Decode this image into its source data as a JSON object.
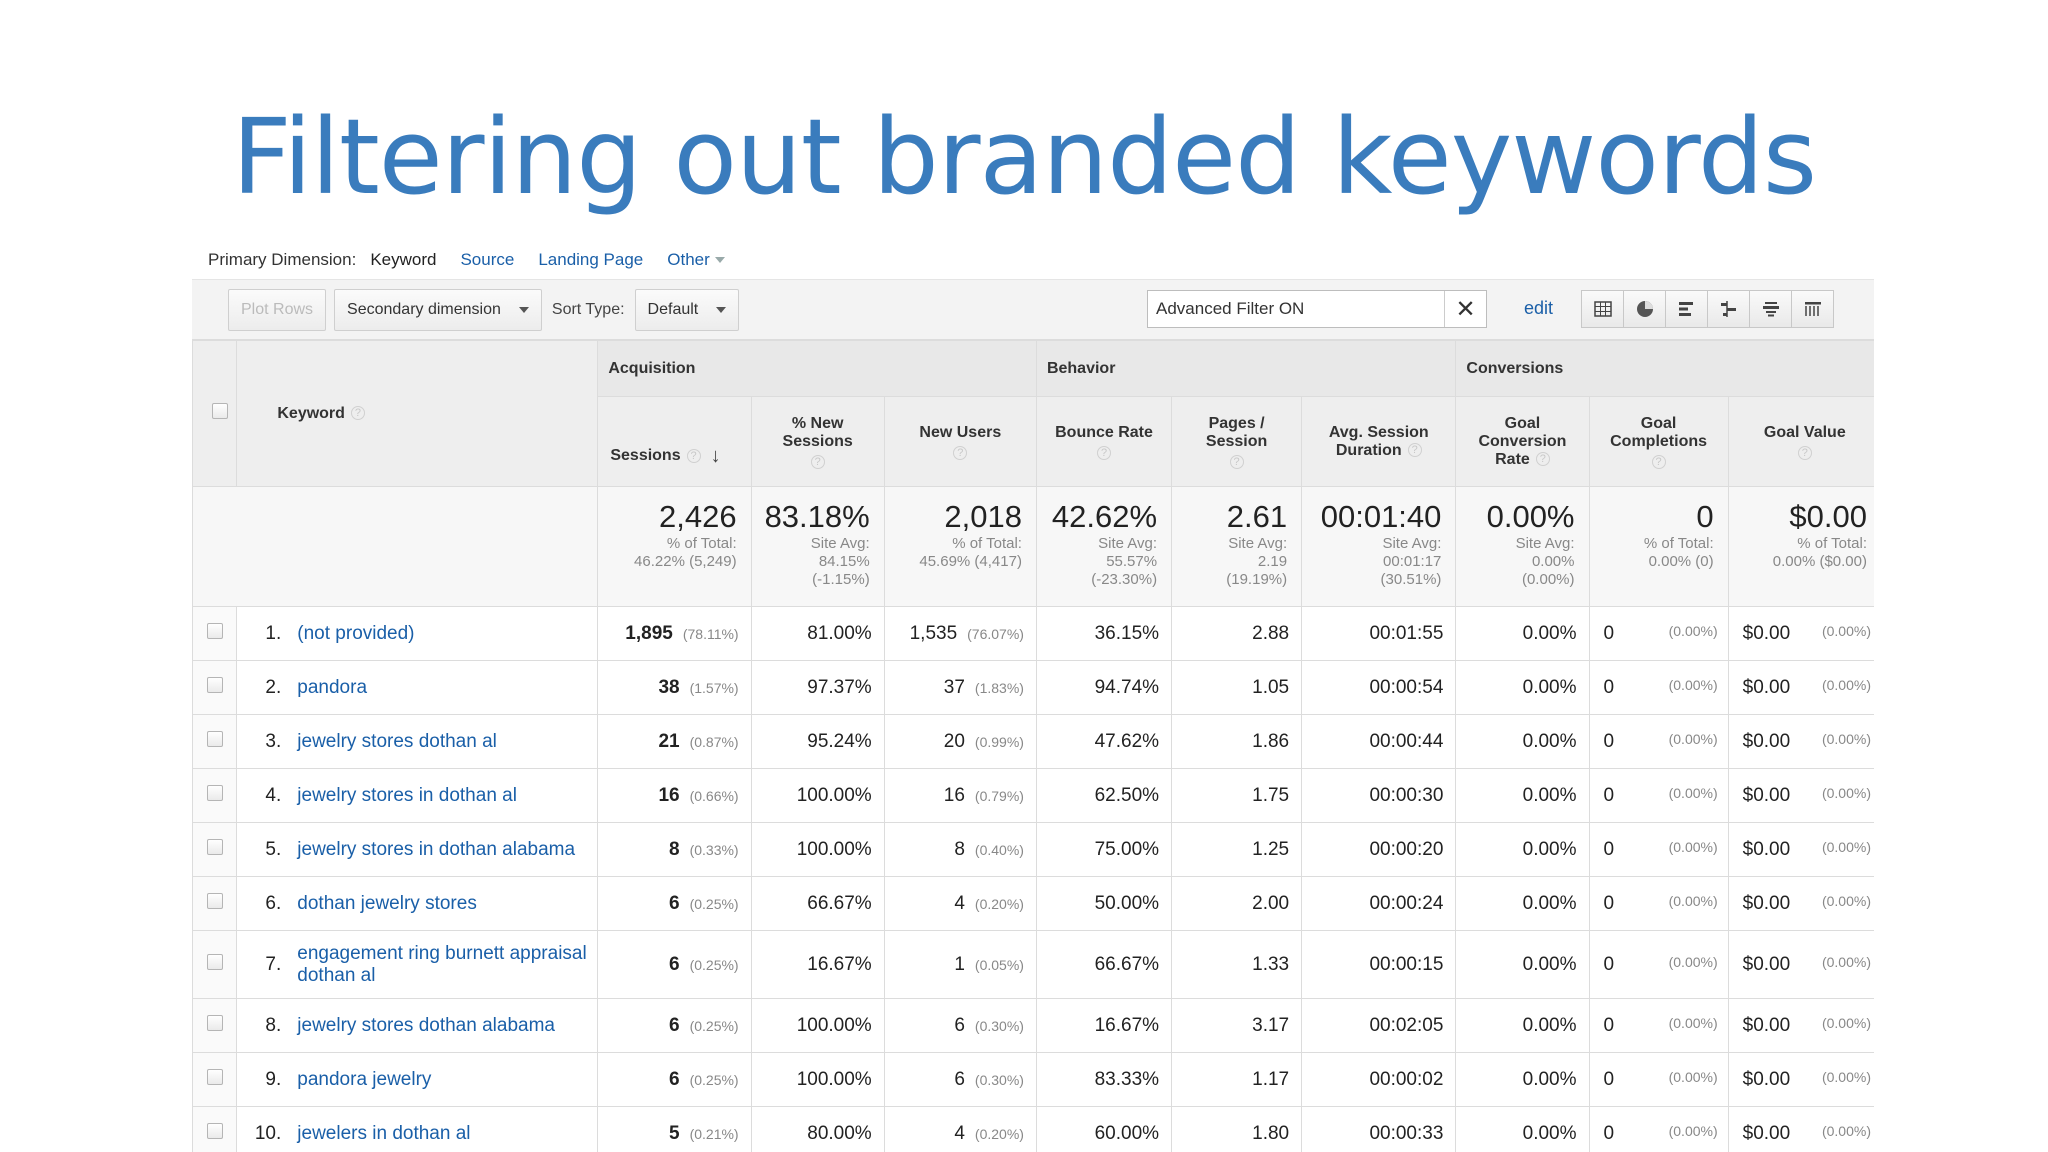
{
  "title": "Filtering out branded keywords",
  "primary_dimension": {
    "label": "Primary Dimension:",
    "active": "Keyword",
    "links": [
      "Source",
      "Landing Page",
      "Other"
    ]
  },
  "toolbar": {
    "plot_rows": "Plot Rows",
    "secondary_dimension": "Secondary dimension",
    "sort_type_label": "Sort Type:",
    "sort_type_value": "Default",
    "filter_text": "Advanced Filter ON",
    "edit": "edit",
    "view_icons": [
      "table-view-icon",
      "pie-view-icon",
      "performance-view-icon",
      "comparison-view-icon",
      "term-cloud-view-icon",
      "pivot-view-icon"
    ]
  },
  "groups": [
    "Acquisition",
    "Behavior",
    "Conversions"
  ],
  "columns": {
    "keyword": "Keyword",
    "sessions": "Sessions",
    "new_sessions": "% New Sessions",
    "new_users": "New Users",
    "bounce_rate": "Bounce Rate",
    "pages_session": "Pages / Session",
    "avg_duration": "Avg. Session Duration",
    "goal_conv_rate": "Goal Conversion Rate",
    "goal_completions": "Goal Completions",
    "goal_value": "Goal Value"
  },
  "totals": {
    "sessions": {
      "big": "2,426",
      "sub": "% of Total:\n46.22% (5,249)"
    },
    "new_sessions": {
      "big": "83.18%",
      "sub": "Site Avg:\n84.15%\n(-1.15%)"
    },
    "new_users": {
      "big": "2,018",
      "sub": "% of Total:\n45.69% (4,417)"
    },
    "bounce_rate": {
      "big": "42.62%",
      "sub": "Site Avg:\n55.57%\n(-23.30%)"
    },
    "pages_session": {
      "big": "2.61",
      "sub": "Site Avg:\n2.19\n(19.19%)"
    },
    "avg_duration": {
      "big": "00:01:40",
      "sub": "Site Avg:\n00:01:17\n(30.51%)"
    },
    "goal_conv_rate": {
      "big": "0.00%",
      "sub": "Site Avg:\n0.00%\n(0.00%)"
    },
    "goal_completions": {
      "big": "0",
      "sub": "% of Total:\n0.00% (0)"
    },
    "goal_value": {
      "big": "$0.00",
      "sub": "% of Total:\n0.00% ($0.00)"
    }
  },
  "rows": [
    {
      "idx": "1.",
      "keyword": "(not provided)",
      "sessions": "1,895",
      "sessions_pct": "(78.11%)",
      "new_sessions": "81.00%",
      "new_users": "1,535",
      "new_users_pct": "(76.07%)",
      "bounce": "36.15%",
      "pages": "2.88",
      "duration": "00:01:55",
      "conv": "0.00%",
      "comp": "0",
      "comp_pct": "(0.00%)",
      "value": "$0.00",
      "value_pct": "(0.00%)"
    },
    {
      "idx": "2.",
      "keyword": "pandora",
      "sessions": "38",
      "sessions_pct": "(1.57%)",
      "new_sessions": "97.37%",
      "new_users": "37",
      "new_users_pct": "(1.83%)",
      "bounce": "94.74%",
      "pages": "1.05",
      "duration": "00:00:54",
      "conv": "0.00%",
      "comp": "0",
      "comp_pct": "(0.00%)",
      "value": "$0.00",
      "value_pct": "(0.00%)"
    },
    {
      "idx": "3.",
      "keyword": "jewelry stores dothan al",
      "sessions": "21",
      "sessions_pct": "(0.87%)",
      "new_sessions": "95.24%",
      "new_users": "20",
      "new_users_pct": "(0.99%)",
      "bounce": "47.62%",
      "pages": "1.86",
      "duration": "00:00:44",
      "conv": "0.00%",
      "comp": "0",
      "comp_pct": "(0.00%)",
      "value": "$0.00",
      "value_pct": "(0.00%)"
    },
    {
      "idx": "4.",
      "keyword": "jewelry stores in dothan al",
      "sessions": "16",
      "sessions_pct": "(0.66%)",
      "new_sessions": "100.00%",
      "new_users": "16",
      "new_users_pct": "(0.79%)",
      "bounce": "62.50%",
      "pages": "1.75",
      "duration": "00:00:30",
      "conv": "0.00%",
      "comp": "0",
      "comp_pct": "(0.00%)",
      "value": "$0.00",
      "value_pct": "(0.00%)"
    },
    {
      "idx": "5.",
      "keyword": "jewelry stores in dothan alabama",
      "sessions": "8",
      "sessions_pct": "(0.33%)",
      "new_sessions": "100.00%",
      "new_users": "8",
      "new_users_pct": "(0.40%)",
      "bounce": "75.00%",
      "pages": "1.25",
      "duration": "00:00:20",
      "conv": "0.00%",
      "comp": "0",
      "comp_pct": "(0.00%)",
      "value": "$0.00",
      "value_pct": "(0.00%)"
    },
    {
      "idx": "6.",
      "keyword": "dothan jewelry stores",
      "sessions": "6",
      "sessions_pct": "(0.25%)",
      "new_sessions": "66.67%",
      "new_users": "4",
      "new_users_pct": "(0.20%)",
      "bounce": "50.00%",
      "pages": "2.00",
      "duration": "00:00:24",
      "conv": "0.00%",
      "comp": "0",
      "comp_pct": "(0.00%)",
      "value": "$0.00",
      "value_pct": "(0.00%)"
    },
    {
      "idx": "7.",
      "keyword": "engagement ring burnett appraisal dothan al",
      "sessions": "6",
      "sessions_pct": "(0.25%)",
      "new_sessions": "16.67%",
      "new_users": "1",
      "new_users_pct": "(0.05%)",
      "bounce": "66.67%",
      "pages": "1.33",
      "duration": "00:00:15",
      "conv": "0.00%",
      "comp": "0",
      "comp_pct": "(0.00%)",
      "value": "$0.00",
      "value_pct": "(0.00%)"
    },
    {
      "idx": "8.",
      "keyword": "jewelry stores dothan alabama",
      "sessions": "6",
      "sessions_pct": "(0.25%)",
      "new_sessions": "100.00%",
      "new_users": "6",
      "new_users_pct": "(0.30%)",
      "bounce": "16.67%",
      "pages": "3.17",
      "duration": "00:02:05",
      "conv": "0.00%",
      "comp": "0",
      "comp_pct": "(0.00%)",
      "value": "$0.00",
      "value_pct": "(0.00%)"
    },
    {
      "idx": "9.",
      "keyword": "pandora jewelry",
      "sessions": "6",
      "sessions_pct": "(0.25%)",
      "new_sessions": "100.00%",
      "new_users": "6",
      "new_users_pct": "(0.30%)",
      "bounce": "83.33%",
      "pages": "1.17",
      "duration": "00:00:02",
      "conv": "0.00%",
      "comp": "0",
      "comp_pct": "(0.00%)",
      "value": "$0.00",
      "value_pct": "(0.00%)"
    },
    {
      "idx": "10.",
      "keyword": "jewelers in dothan al",
      "sessions": "5",
      "sessions_pct": "(0.21%)",
      "new_sessions": "80.00%",
      "new_users": "4",
      "new_users_pct": "(0.20%)",
      "bounce": "60.00%",
      "pages": "1.80",
      "duration": "00:00:33",
      "conv": "0.00%",
      "comp": "0",
      "comp_pct": "(0.00%)",
      "value": "$0.00",
      "value_pct": "(0.00%)"
    }
  ]
}
